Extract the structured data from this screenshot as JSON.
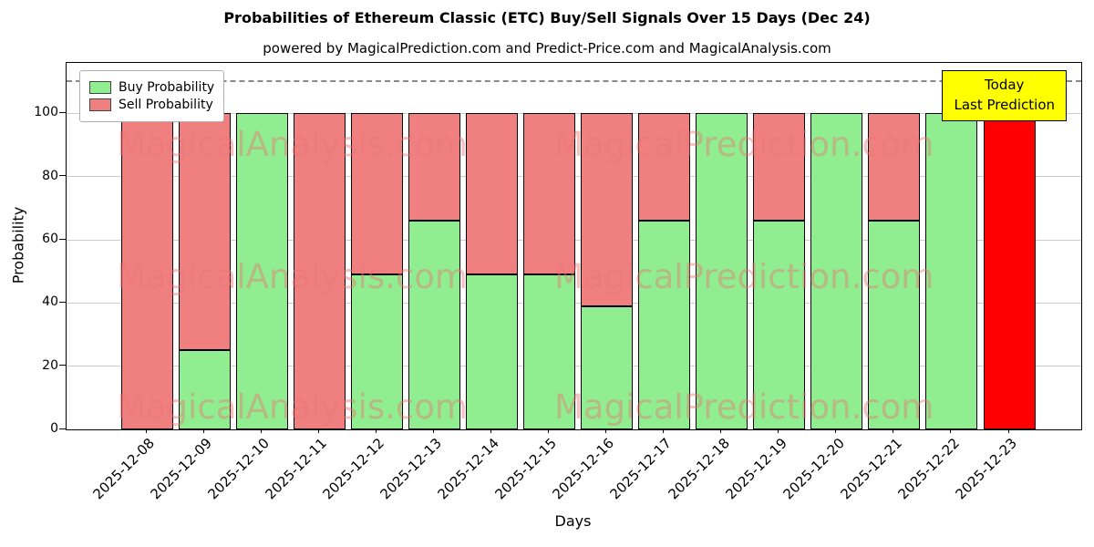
{
  "chart_data": {
    "type": "bar",
    "stacked": true,
    "title": "Probabilities of Ethereum Classic (ETC) Buy/Sell Signals Over 15 Days (Dec 24)",
    "subtitle": "powered by MagicalPrediction.com and Predict-Price.com and MagicalAnalysis.com",
    "xlabel": "Days",
    "ylabel": "Probability",
    "ylim": [
      0,
      116
    ],
    "yticks": [
      0,
      20,
      40,
      60,
      80,
      100
    ],
    "grid": "horizontal",
    "dashed_line_y": 110,
    "legend_position": "upper left",
    "categories": [
      "2025-12-08",
      "2025-12-09",
      "2025-12-10",
      "2025-12-11",
      "2025-12-12",
      "2025-12-13",
      "2025-12-14",
      "2025-12-15",
      "2025-12-16",
      "2025-12-17",
      "2025-12-18",
      "2025-12-19",
      "2025-12-20",
      "2025-12-21",
      "2025-12-22",
      "2025-12-23"
    ],
    "series": [
      {
        "name": "Buy Probability",
        "color": "#90EE90",
        "values": [
          0,
          25,
          100,
          0,
          49,
          66,
          49,
          49,
          39,
          66,
          100,
          66,
          100,
          66,
          100,
          0
        ]
      },
      {
        "name": "Sell Probability",
        "color": "#F08080",
        "values": [
          100,
          75,
          0,
          100,
          51,
          34,
          51,
          51,
          61,
          34,
          0,
          34,
          0,
          34,
          0,
          100
        ]
      }
    ],
    "today_bar": {
      "index": 15,
      "date": "2025-12-23",
      "color": "#FF0000",
      "value": 100
    },
    "today_box": {
      "line1": "Today",
      "line2": "Last Prediction",
      "background": "#FFFF00"
    },
    "watermarks": [
      "MagicalAnalysis.com",
      "MagicalPrediction.com"
    ]
  }
}
